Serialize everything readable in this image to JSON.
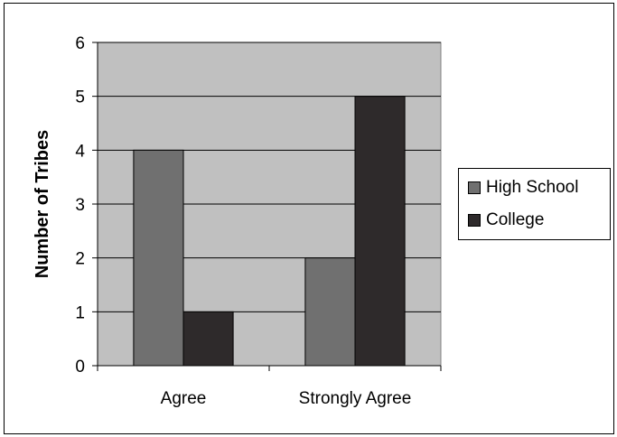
{
  "chart_data": {
    "type": "bar",
    "categories": [
      "Agree",
      "Strongly Agree"
    ],
    "series": [
      {
        "name": "High School",
        "values": [
          4,
          2
        ],
        "color": "#707070"
      },
      {
        "name": "College",
        "values": [
          1,
          5
        ],
        "color": "#2e2a2b"
      }
    ],
    "ylabel": "Number of Tribes",
    "ylim": [
      0,
      6
    ],
    "yticks": [
      0,
      1,
      2,
      3,
      4,
      5,
      6
    ],
    "grid": true,
    "plot_background": "#c0c0c0",
    "legend": "right"
  }
}
